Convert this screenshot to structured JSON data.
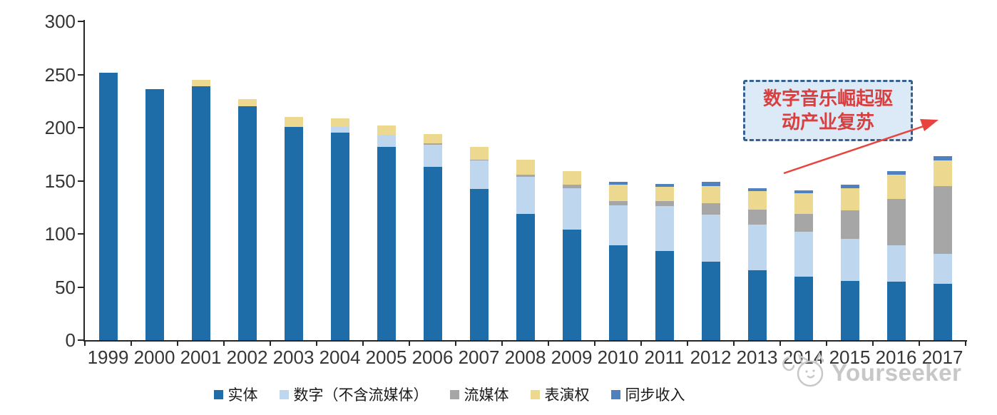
{
  "chart_data": {
    "type": "bar",
    "variant": "stacked",
    "categories": [
      "1999",
      "2000",
      "2001",
      "2002",
      "2003",
      "2004",
      "2005",
      "2006",
      "2007",
      "2008",
      "2009",
      "2010",
      "2011",
      "2012",
      "2013",
      "2014",
      "2015",
      "2016",
      "2017"
    ],
    "series": [
      {
        "name": "实体",
        "color": "#1E6CA8",
        "values": [
          252,
          236,
          239,
          220,
          201,
          195,
          182,
          163,
          142,
          119,
          104,
          89,
          84,
          74,
          66,
          60,
          56,
          55,
          53
        ]
      },
      {
        "name": "数字（不含流媒体）",
        "color": "#BFD7EE",
        "values": [
          0,
          0,
          0,
          0,
          0,
          6,
          11,
          21,
          27,
          35,
          39,
          38,
          42,
          44,
          43,
          42,
          39,
          34,
          28
        ]
      },
      {
        "name": "流媒体",
        "color": "#A6A6A6",
        "values": [
          0,
          0,
          0,
          0,
          0,
          0,
          0,
          1,
          1,
          2,
          3,
          4,
          5,
          11,
          14,
          17,
          27,
          44,
          64
        ]
      },
      {
        "name": "表演权",
        "color": "#EDD88F",
        "values": [
          0,
          0,
          6,
          7,
          9,
          8,
          9,
          9,
          12,
          14,
          13,
          15,
          13,
          16,
          17,
          19,
          21,
          23,
          24
        ]
      },
      {
        "name": "同步收入",
        "color": "#4E81BD",
        "values": [
          0,
          0,
          0,
          0,
          0,
          0,
          0,
          0,
          0,
          0,
          0,
          3,
          3,
          4,
          3,
          3,
          3,
          3,
          4
        ]
      }
    ],
    "ylim": [
      0,
      300
    ],
    "ytick_step": 50,
    "yticks": [
      "0",
      "50",
      "100",
      "150",
      "200",
      "250",
      "300"
    ],
    "grid": false,
    "legend_position": "bottom"
  },
  "annotation": {
    "lines": [
      "数字音乐崛起驱",
      "动产业复苏"
    ],
    "box_fill": "#DCE9F7",
    "box_border_color": "#36618E",
    "text_color": "#D84040",
    "arrow_color": "#E8433C"
  },
  "watermark": {
    "text": "Yourseeker",
    "color": "#C7C7C7"
  },
  "colors": {
    "axis": "#262626",
    "tick_label": "#363636"
  }
}
